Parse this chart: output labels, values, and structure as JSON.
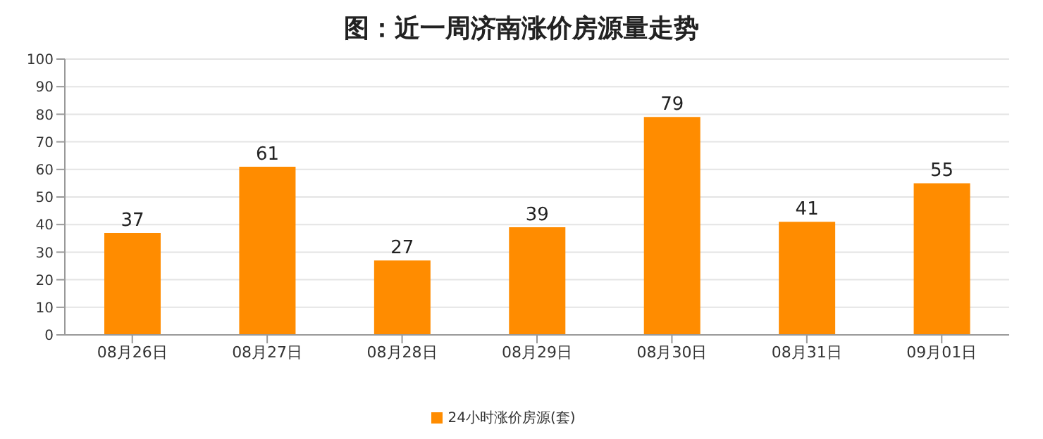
{
  "chart_data": {
    "type": "bar",
    "title": "图：近一周济南涨价房源量走势",
    "categories": [
      "08月26日",
      "08月27日",
      "08月28日",
      "08月29日",
      "08月30日",
      "08月31日",
      "09月01日"
    ],
    "series": [
      {
        "name": "24小时涨价房源(套)",
        "color": "#ff8c00",
        "values": [
          37,
          61,
          27,
          39,
          79,
          41,
          55
        ]
      }
    ],
    "ylim": [
      0,
      100
    ],
    "yticks": [
      0,
      10,
      20,
      30,
      40,
      50,
      60,
      70,
      80,
      90,
      100
    ],
    "grid": "y",
    "legend": "bottom",
    "data_labels": true
  }
}
